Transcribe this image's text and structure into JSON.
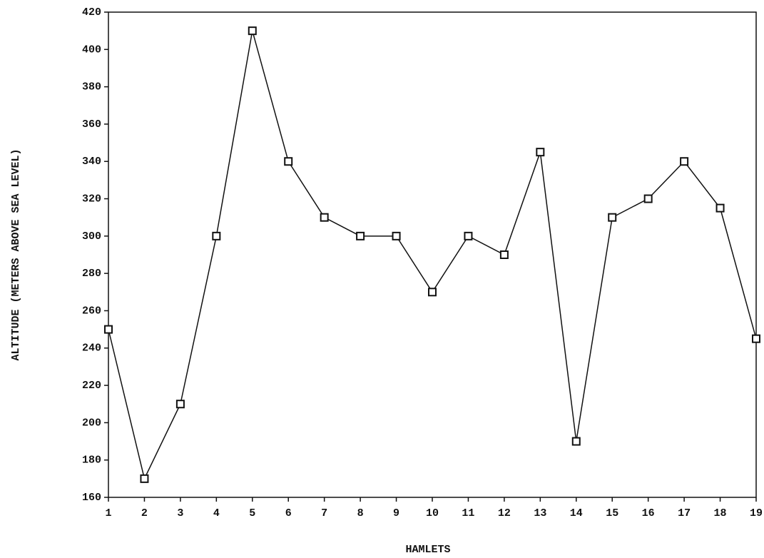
{
  "chart_data": {
    "type": "line",
    "x_label": "HAMLETS",
    "y_label": "ALTITUDE (METERS ABOVE SEA LEVEL)",
    "x": [
      1,
      2,
      3,
      4,
      5,
      6,
      7,
      8,
      9,
      10,
      11,
      12,
      13,
      14,
      15,
      16,
      17,
      18,
      19
    ],
    "series": [
      {
        "color": "#111111",
        "values": [
          250,
          170,
          210,
          300,
          410,
          340,
          310,
          300,
          300,
          270,
          300,
          290,
          345,
          190,
          310,
          320,
          340,
          315,
          245
        ]
      }
    ],
    "xlim": [
      1,
      19
    ],
    "xticks": [
      1,
      2,
      3,
      4,
      5,
      6,
      7,
      8,
      9,
      10,
      11,
      12,
      13,
      14,
      15,
      16,
      17,
      18,
      19
    ],
    "ylim": [
      160,
      420
    ],
    "yticks": [
      160,
      180,
      200,
      220,
      240,
      260,
      280,
      300,
      320,
      340,
      360,
      380,
      400,
      420
    ],
    "marker": "square"
  }
}
